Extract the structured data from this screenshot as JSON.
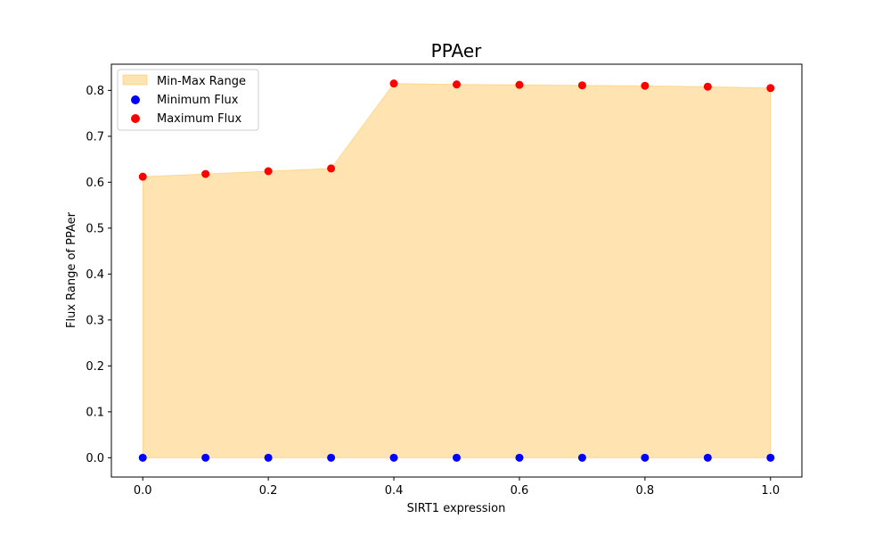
{
  "chart_data": {
    "type": "scatter",
    "title": "PPAer",
    "xlabel": "SIRT1 expression",
    "ylabel": "Flux Range of PPAer",
    "x": [
      0.0,
      0.1,
      0.2,
      0.3,
      0.4,
      0.5,
      0.6,
      0.7,
      0.8,
      0.9,
      1.0
    ],
    "series": [
      {
        "name": "Minimum Flux",
        "kind": "scatter",
        "color": "#0000ff",
        "values": [
          0,
          0,
          0,
          0,
          0,
          0,
          0,
          0,
          0,
          0,
          0
        ]
      },
      {
        "name": "Maximum Flux",
        "kind": "scatter",
        "color": "#ff0000",
        "values": [
          0.612,
          0.618,
          0.624,
          0.63,
          0.815,
          0.813,
          0.812,
          0.811,
          0.81,
          0.808,
          0.805
        ]
      }
    ],
    "fill": {
      "name": "Min-Max Range",
      "color": "#ffa500",
      "alpha": 0.3
    },
    "xlim": [
      -0.05,
      1.05
    ],
    "ylim": [
      -0.042,
      0.857
    ],
    "xticks": [
      "0.0",
      "0.2",
      "0.4",
      "0.6",
      "0.8",
      "1.0"
    ],
    "yticks": [
      "0.0",
      "0.1",
      "0.2",
      "0.3",
      "0.4",
      "0.5",
      "0.6",
      "0.7",
      "0.8"
    ],
    "grid": false,
    "legend_position": "upper-left"
  }
}
